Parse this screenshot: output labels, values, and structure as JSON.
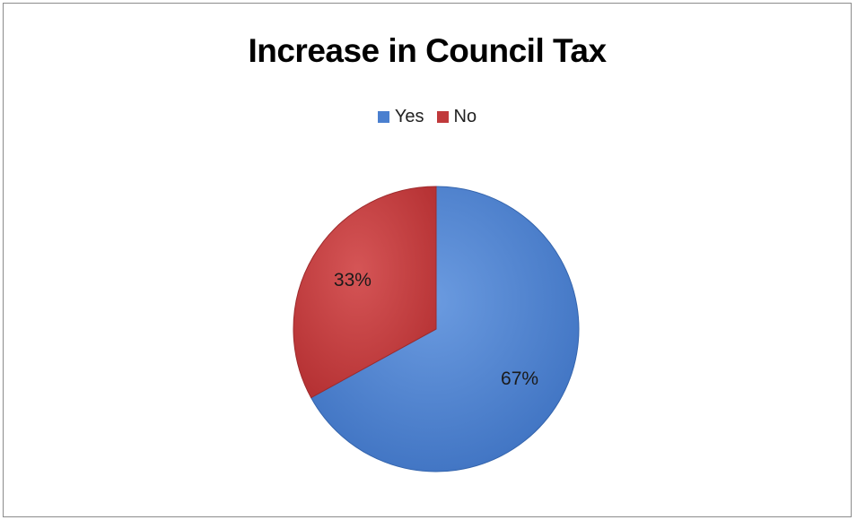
{
  "chart_data": {
    "type": "pie",
    "title": "Increase in Council Tax",
    "categories": [
      "Yes",
      "No"
    ],
    "values": [
      67,
      33
    ],
    "labels": [
      "67%",
      "33%"
    ],
    "colors": [
      "#4a7fcf",
      "#c0393b"
    ],
    "legend_position": "top"
  }
}
